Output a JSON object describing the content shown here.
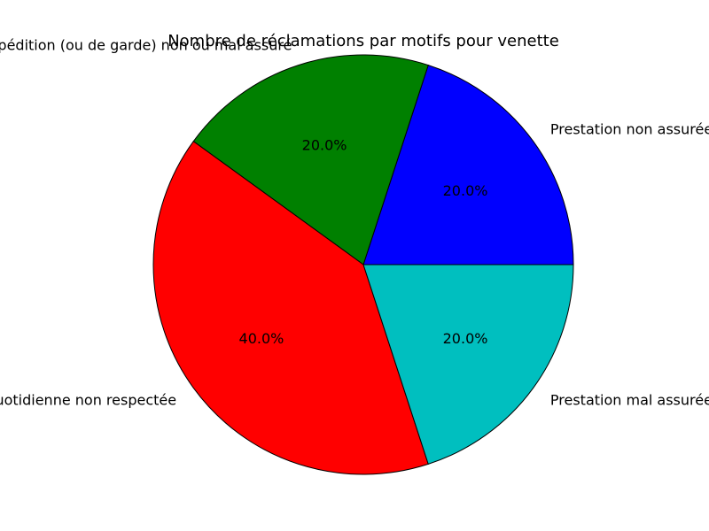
{
  "chart_data": {
    "type": "pie",
    "title": "Nombre de réclamations par motifs pour venette",
    "slices": [
      {
        "label": "Prestation non assurée",
        "value": 20.0,
        "percent_label": "20.0%",
        "color": "#0000ff"
      },
      {
        "label": "Collecte d'expédition (ou de garde) non ou mal assuré",
        "value": 20.0,
        "percent_label": "20.0%",
        "color": "#008000"
      },
      {
        "label": "Collecte quotidienne non respectée",
        "value": 40.0,
        "percent_label": "40.0%",
        "color": "#ff0000"
      },
      {
        "label": "Prestation mal assurée",
        "value": 20.0,
        "percent_label": "20.0%",
        "color": "#00bfbf"
      }
    ],
    "start_angle_deg": 0,
    "direction": "counterclockwise"
  }
}
